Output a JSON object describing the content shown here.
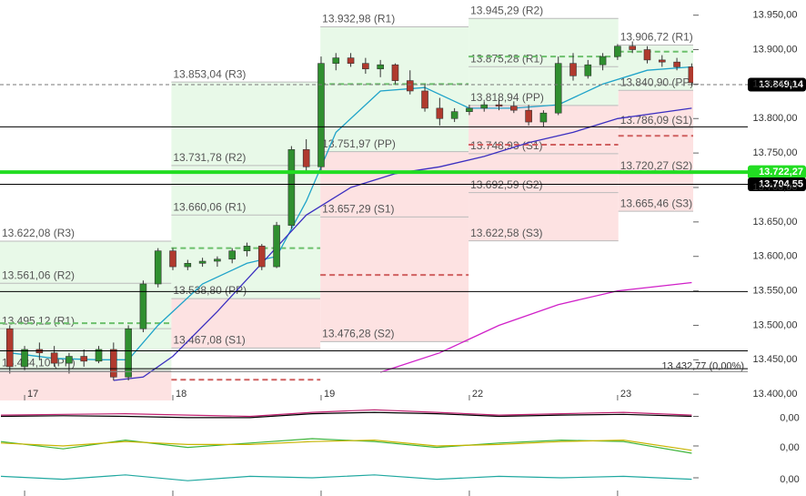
{
  "chart_data": {
    "type": "candlestick",
    "xlim": [
      -1.66,
      45.1
    ],
    "ylim": [
      13391,
      13972
    ],
    "xticks": [
      {
        "value": 0,
        "label": "17"
      },
      {
        "value": 10,
        "label": "18"
      },
      {
        "value": 20,
        "label": "19"
      },
      {
        "value": 30,
        "label": "22"
      },
      {
        "value": 40,
        "label": "23"
      }
    ],
    "yticks": [
      {
        "value": 13950,
        "label": "13.950,00"
      },
      {
        "value": 13900,
        "label": "13.900,00"
      },
      {
        "value": 13850,
        "label": "13.850,00"
      },
      {
        "value": 13800,
        "label": "13.800,00"
      },
      {
        "value": 13750,
        "label": "13.750,00"
      },
      {
        "value": 13700,
        "label": "13.700,00"
      },
      {
        "value": 13650,
        "label": "13.650,00"
      },
      {
        "value": 13600,
        "label": "13.600,00"
      },
      {
        "value": 13550,
        "label": "13.550,00"
      },
      {
        "value": 13500,
        "label": "13.500,00"
      },
      {
        "value": 13450,
        "label": "13.450,00"
      },
      {
        "value": 13400,
        "label": "13.400,00"
      }
    ],
    "up_color": "#2f8f2f",
    "down_color": "#b03a2e",
    "candles": {
      "x": [
        -1,
        0,
        1,
        2,
        3,
        4,
        5,
        6,
        7,
        8,
        9,
        10,
        11,
        12,
        13,
        14,
        15,
        16,
        17,
        18,
        19,
        20,
        21,
        22,
        23,
        24,
        25,
        26,
        27,
        28,
        29,
        30,
        31,
        32,
        33,
        34,
        35,
        36,
        37,
        38,
        39,
        40,
        41,
        42,
        43,
        44,
        45
      ],
      "open": [
        13495,
        13440,
        13465,
        13460,
        13445,
        13455,
        13448,
        13465,
        13425,
        13495,
        13560,
        13608,
        13585,
        13590,
        13593,
        13596,
        13608,
        13615,
        13585,
        13645,
        13755,
        13730,
        13880,
        13888,
        13880,
        13872,
        13878,
        13855,
        13840,
        13815,
        13800,
        13810,
        13815,
        13820,
        13818,
        13812,
        13795,
        13808,
        13880,
        13862,
        13878,
        13890,
        13905,
        13900,
        13885,
        13882,
        13875
      ],
      "high": [
        13500,
        13470,
        13475,
        13470,
        13460,
        13465,
        13470,
        13475,
        13500,
        13565,
        13612,
        13612,
        13595,
        13598,
        13600,
        13612,
        13620,
        13618,
        13650,
        13760,
        13770,
        13890,
        13895,
        13895,
        13888,
        13885,
        13880,
        13870,
        13850,
        13830,
        13815,
        13820,
        13825,
        13828,
        13825,
        13820,
        13812,
        13890,
        13895,
        13885,
        13895,
        13908,
        13912,
        13905,
        13892,
        13888,
        13880
      ],
      "low": [
        13430,
        13435,
        13450,
        13440,
        13430,
        13440,
        13445,
        13420,
        13420,
        13490,
        13555,
        13580,
        13580,
        13585,
        13585,
        13590,
        13600,
        13580,
        13583,
        13640,
        13720,
        13725,
        13870,
        13875,
        13865,
        13860,
        13850,
        13835,
        13810,
        13790,
        13795,
        13805,
        13810,
        13812,
        13808,
        13790,
        13788,
        13805,
        13855,
        13858,
        13870,
        13885,
        13895,
        13880,
        13875,
        13870,
        13848
      ],
      "close": [
        13440,
        13465,
        13460,
        13445,
        13455,
        13448,
        13465,
        13425,
        13495,
        13560,
        13608,
        13585,
        13590,
        13593,
        13596,
        13608,
        13615,
        13585,
        13645,
        13755,
        13730,
        13880,
        13888,
        13880,
        13872,
        13878,
        13855,
        13840,
        13815,
        13800,
        13810,
        13815,
        13820,
        13818,
        13812,
        13795,
        13808,
        13880,
        13862,
        13878,
        13890,
        13905,
        13900,
        13885,
        13882,
        13875,
        13852
      ]
    },
    "series": [
      {
        "color": "#1fa3c9",
        "x": [
          -1,
          2,
          5,
          7,
          9,
          12,
          15,
          17,
          19,
          21,
          24,
          27,
          30,
          33,
          36,
          39,
          42,
          45
        ],
        "values": [
          13460,
          13452,
          13450,
          13450,
          13500,
          13560,
          13590,
          13600,
          13680,
          13780,
          13840,
          13845,
          13815,
          13815,
          13820,
          13850,
          13870,
          13875
        ]
      },
      {
        "color": "#3b2fc0",
        "x": [
          6,
          8,
          10,
          13,
          16,
          19,
          22,
          25,
          28,
          31,
          34,
          37,
          40,
          45
        ],
        "values": [
          13420,
          13425,
          13455,
          13520,
          13590,
          13660,
          13700,
          13720,
          13730,
          13745,
          13765,
          13780,
          13800,
          13815
        ]
      },
      {
        "color": "#d020c8",
        "x": [
          24,
          28,
          32,
          36,
          40,
          45
        ],
        "values": [
          13432,
          13460,
          13500,
          13530,
          13550,
          13562
        ]
      }
    ],
    "pivots": [
      {
        "start": -1.66,
        "end": 9.9,
        "resistance": [
          {
            "value": 13622.08,
            "label": "13.622,08 (R3)"
          },
          {
            "value": 13561.06,
            "label": "13.561,06 (R2)"
          },
          {
            "value": 13495.12,
            "label": "13.495,12 (R1)"
          }
        ],
        "pp": {
          "value": 13434.1,
          "label": "13.434,10 (PP)"
        },
        "support": [],
        "dashes": [
          {
            "value": 13503,
            "color": "#6cc06c"
          }
        ]
      },
      {
        "start": 9.9,
        "end": 19.95,
        "resistance": [
          {
            "value": 13853.04,
            "label": "13.853,04 (R3)"
          },
          {
            "value": 13731.78,
            "label": "13.731,78 (R2)"
          },
          {
            "value": 13660.06,
            "label": "13.660,06 (R1)"
          }
        ],
        "pp": {
          "value": 13538.8,
          "label": "13.538,80 (PP)"
        },
        "support": [
          {
            "value": 13467.08,
            "label": "13.467,08 (S1)"
          }
        ],
        "dashes": [
          {
            "value": 13612,
            "color": "#6cc06c"
          },
          {
            "value": 13421,
            "color": "#d06060"
          }
        ]
      },
      {
        "start": 19.95,
        "end": 29.95,
        "resistance": [
          {
            "value": 13932.98,
            "label": "13.932,98 (R1)"
          }
        ],
        "pp": {
          "value": 13751.97,
          "label": "13.751,97 (PP)"
        },
        "support": [
          {
            "value": 13657.29,
            "label": "13.657,29 (S1)"
          },
          {
            "value": 13476.28,
            "label": "13.476,28 (S2)"
          }
        ],
        "dashes": [
          {
            "value": 13850,
            "color": "#6cc06c"
          },
          {
            "value": 13573,
            "color": "#d06060"
          }
        ]
      },
      {
        "start": 29.95,
        "end": 40.05,
        "resistance": [
          {
            "value": 13945.29,
            "label": "13.945,29 (R2)"
          },
          {
            "value": 13875.28,
            "label": "13.875,28 (R1)"
          }
        ],
        "pp": {
          "value": 13818.94,
          "label": "13.818,94 (PP)"
        },
        "support": [
          {
            "value": 13748.93,
            "label": "13.748,93 (S1)"
          },
          {
            "value": 13692.59,
            "label": "13.692,59 (S2)"
          },
          {
            "value": 13622.58,
            "label": "13.622,58 (S3)"
          }
        ],
        "dashes": [
          {
            "value": 13890,
            "color": "#6cc06c"
          },
          {
            "value": 13762,
            "color": "#d06060"
          }
        ]
      },
      {
        "start": 40.05,
        "end": 45.1,
        "resistance": [
          {
            "value": 13906.72,
            "label": "13.906,72 (R1)"
          }
        ],
        "pp": {
          "value": 13840.9,
          "label": "13.840,90 (PP)"
        },
        "support": [
          {
            "value": 13786.09,
            "label": "13.786,09 (S1)"
          },
          {
            "value": 13720.27,
            "label": "13.720,27 (S2)"
          },
          {
            "value": 13665.46,
            "label": "13.665,46 (S3)"
          }
        ],
        "dashes": [
          {
            "value": 13897,
            "color": "#6cc06c"
          },
          {
            "value": 13775,
            "color": "#d06060"
          }
        ]
      }
    ],
    "hlines": [
      {
        "value": 13788,
        "color": "#000000"
      },
      {
        "value": 13549,
        "color": "#000000"
      },
      {
        "value": 13463,
        "color": "#000000"
      },
      {
        "value": 13437,
        "color": "#000000"
      }
    ],
    "price_labels": [
      {
        "value": 13849.14,
        "label": "13.849,14",
        "color": "#000000",
        "line": "dashed"
      },
      {
        "value": 13722.27,
        "label": "13.722,27",
        "color": "#22dd22",
        "line": "thick"
      },
      {
        "value": 13704.55,
        "label": "13.704,55",
        "color": "#000000",
        "line": "solid"
      }
    ],
    "annotation": {
      "value": 13432.77,
      "label": "13.432,77 (0,00%)"
    },
    "panels": [
      {
        "ylim": [
          -1,
          1
        ],
        "yticks": [
          {
            "value": 0,
            "label": "0,00"
          }
        ],
        "x": [
          -1.6,
          2.6,
          6.8,
          11,
          15.2,
          19.4,
          23.6,
          27.8,
          32,
          36.2,
          40.4,
          45
        ],
        "series": [
          {
            "color": "#c02070",
            "values": [
              0.1,
              0.15,
              0.2,
              0.1,
              0.0,
              0.3,
              0.5,
              0.3,
              0.1,
              0.2,
              0.3,
              0.1
            ]
          },
          {
            "color": "#000000",
            "values": [
              0,
              0.05,
              0,
              -0.1,
              -0.1,
              0.2,
              0.3,
              0.2,
              0.0,
              0.1,
              0.15,
              0.0
            ]
          }
        ]
      },
      {
        "ylim": [
          -1,
          1
        ],
        "yticks": [
          {
            "value": 0,
            "label": "0,00"
          }
        ],
        "x": [
          -1.6,
          2.6,
          6.8,
          11,
          15.2,
          19.4,
          23.6,
          27.8,
          32,
          36.2,
          40.4,
          45
        ],
        "series": [
          {
            "color": "#3cb43c",
            "values": [
              0.3,
              -0.2,
              0.4,
              -0.1,
              0.2,
              0.5,
              0.3,
              -0.1,
              0.2,
              0.4,
              0.3,
              -0.5
            ]
          },
          {
            "color": "#c8b400",
            "values": [
              0.2,
              0.0,
              0.3,
              0.1,
              0.1,
              0.3,
              0.4,
              0.0,
              0.1,
              0.3,
              0.4,
              -0.3
            ]
          }
        ]
      },
      {
        "ylim": [
          -1,
          1
        ],
        "yticks": [
          {
            "value": 0,
            "label": "0,00"
          }
        ],
        "x": [
          -1.6,
          2.6,
          6.8,
          11,
          15.2,
          19.4,
          23.6,
          27.8,
          32,
          36.2,
          40.4,
          45
        ],
        "series": [
          {
            "color": "#20a8a0",
            "values": [
              0.1,
              -0.1,
              0.2,
              -0.2,
              0.1,
              0.0,
              0.2,
              -0.1,
              0.1,
              0.0,
              0.1,
              -0.1
            ]
          }
        ]
      }
    ]
  }
}
